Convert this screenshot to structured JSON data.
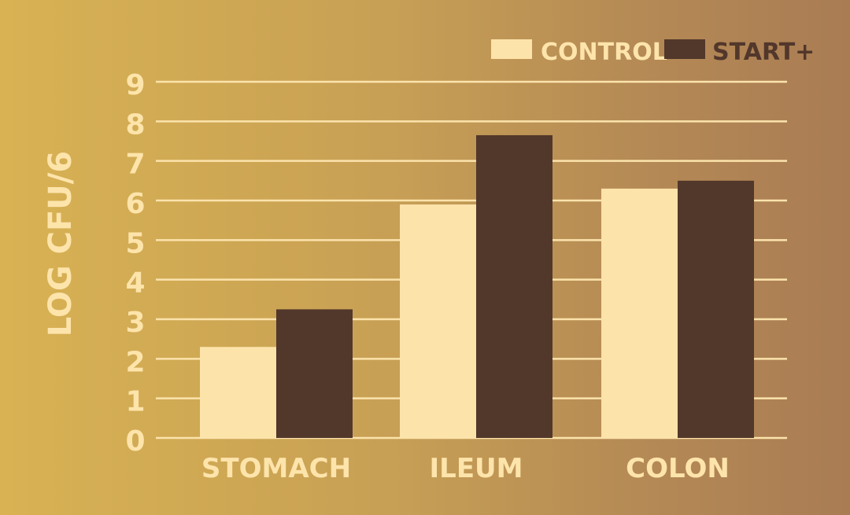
{
  "chart_data": {
    "type": "bar",
    "title": "",
    "xlabel": "",
    "ylabel": "LOG CFU/6",
    "categories": [
      "STOMACH",
      "ILEUM",
      "COLON"
    ],
    "series": [
      {
        "name": "CONTROL",
        "values": [
          2.3,
          5.9,
          6.3
        ]
      },
      {
        "name": "START+",
        "values": [
          3.25,
          7.65,
          6.5
        ]
      }
    ],
    "ylim": [
      0,
      9
    ],
    "yticks": [
      "0",
      "1",
      "2",
      "3",
      "4",
      "5",
      "6",
      "7",
      "8",
      "9"
    ],
    "grid": true,
    "legend_position": "top-right"
  },
  "colors": {
    "control": "#fce3aa",
    "start_plus": "#52372b",
    "text": "#fde4ab",
    "gridline": "#fbe3ac"
  }
}
